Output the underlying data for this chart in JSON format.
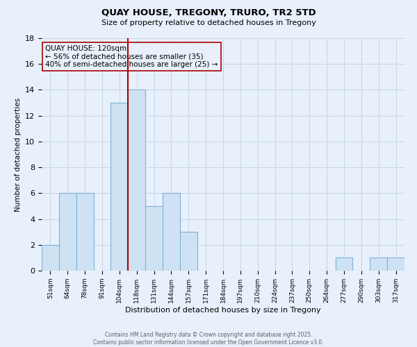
{
  "title": "QUAY HOUSE, TREGONY, TRURO, TR2 5TD",
  "subtitle": "Size of property relative to detached houses in Tregony",
  "xlabel": "Distribution of detached houses by size in Tregony",
  "ylabel": "Number of detached properties",
  "bin_labels": [
    "51sqm",
    "64sqm",
    "78sqm",
    "91sqm",
    "104sqm",
    "118sqm",
    "131sqm",
    "144sqm",
    "157sqm",
    "171sqm",
    "184sqm",
    "197sqm",
    "210sqm",
    "224sqm",
    "237sqm",
    "250sqm",
    "264sqm",
    "277sqm",
    "290sqm",
    "303sqm",
    "317sqm"
  ],
  "bar_heights": [
    2,
    6,
    6,
    0,
    13,
    14,
    5,
    6,
    3,
    0,
    0,
    0,
    0,
    0,
    0,
    0,
    0,
    1,
    0,
    1,
    1
  ],
  "bar_color": "#cfe2f3",
  "bar_edge_color": "#7ab3d9",
  "vline_color": "#aa0000",
  "annotation_text": "QUAY HOUSE: 120sqm\n← 56% of detached houses are smaller (35)\n40% of semi-detached houses are larger (25) →",
  "annotation_box_edge": "#aa0000",
  "ylim": [
    0,
    18
  ],
  "yticks": [
    0,
    2,
    4,
    6,
    8,
    10,
    12,
    14,
    16,
    18
  ],
  "grid_color": "#c8d8e8",
  "bg_color": "#e8f0fb",
  "footer": "Contains HM Land Registry data © Crown copyright and database right 2025.\nContains public sector information licensed under the Open Government Licence v3.0."
}
